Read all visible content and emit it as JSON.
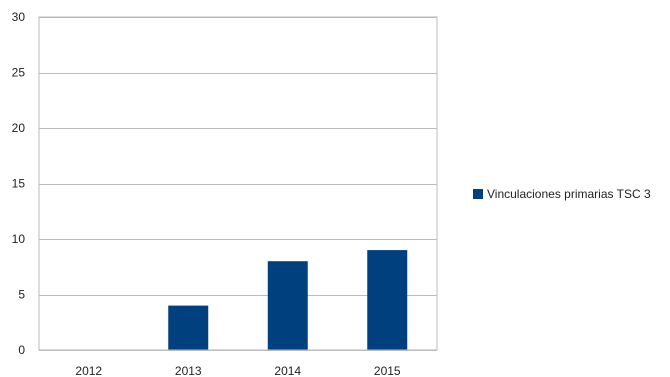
{
  "chart_data": {
    "type": "bar",
    "categories": [
      "2012",
      "2013",
      "2014",
      "2015"
    ],
    "series": [
      {
        "name": "Vinculaciones primarias TSC 3",
        "values": [
          0,
          4,
          8,
          9
        ],
        "color": "#00407f"
      }
    ],
    "ylim": [
      0,
      30
    ],
    "yticks": [
      0,
      5,
      10,
      15,
      20,
      25,
      30
    ],
    "grid": true,
    "legend": "right"
  }
}
